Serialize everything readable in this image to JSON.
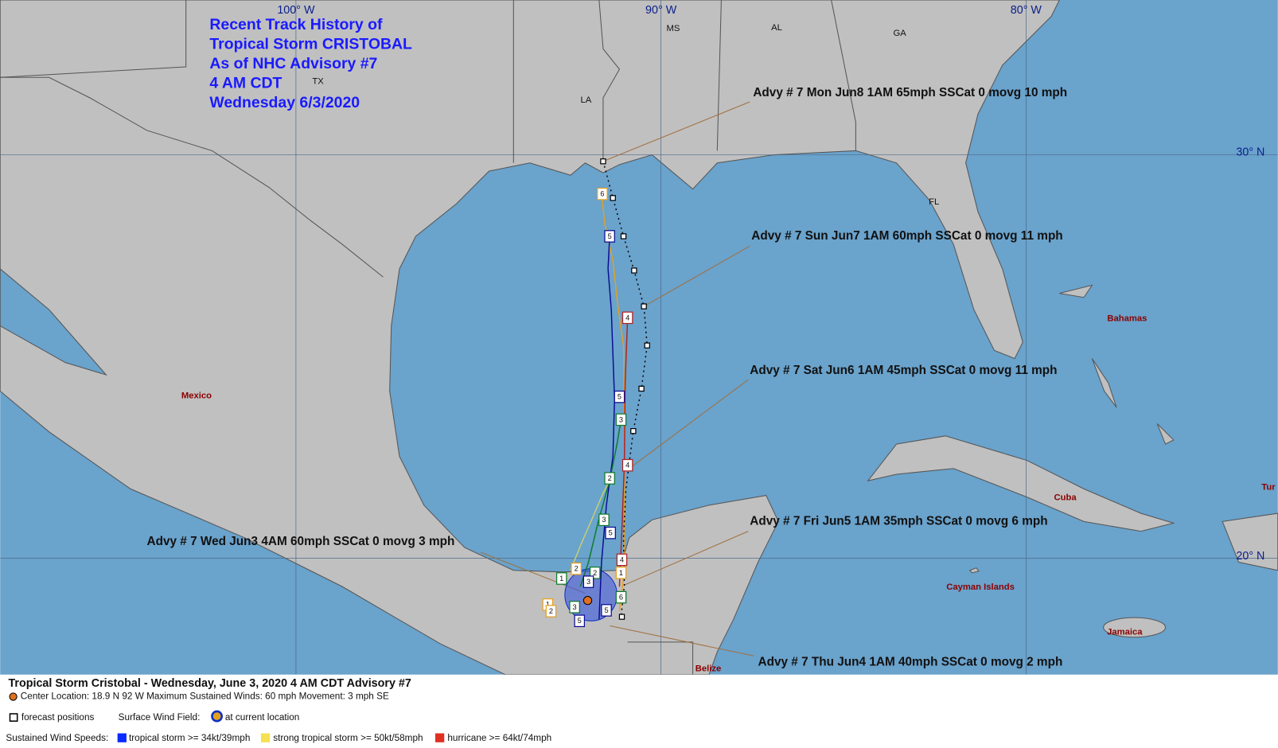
{
  "title_lines": [
    "Recent Track History of",
    "Tropical Storm CRISTOBAL",
    "As of NHC Advisory #7",
    "4 AM CDT",
    "Wednesday 6/3/2020"
  ],
  "longitude_labels": [
    "100° W",
    "90° W",
    "80° W"
  ],
  "latitude_labels": [
    "30° N",
    "20° N"
  ],
  "state_labels": [
    "MS",
    "AL",
    "GA",
    "TX",
    "LA",
    "FL"
  ],
  "place_labels": [
    "Mexico",
    "Bahamas",
    "Cuba",
    "Cayman Islands",
    "Jamaica",
    "Belize",
    "Tur"
  ],
  "advisories": [
    "Advy # 7 Mon Jun8 1AM  65mph SSCat 0 movg 10 mph",
    "Advy # 7 Sun Jun7 1AM  60mph SSCat 0 movg 11 mph",
    "Advy # 7 Sat Jun6 1AM  45mph SSCat 0 movg 11 mph",
    "Advy # 7 Fri Jun5 1AM  35mph SSCat 0 movg 6 mph",
    "Advy # 7 Wed Jun3 4AM  60mph SSCat 0 movg 3 mph",
    "Advy # 7 Thu Jun4 1AM  40mph SSCat 0 movg 2 mph"
  ],
  "track_labels": [
    "6",
    "5",
    "4",
    "5",
    "3",
    "4",
    "2",
    "3",
    "5",
    "4",
    "1",
    "6",
    "5",
    "2",
    "2",
    "1",
    "3",
    "1",
    "2",
    "3",
    "5"
  ],
  "legend": {
    "heading": "Tropical Storm Cristobal  -  Wednesday, June 3, 2020  4 AM CDT   Advisory #7",
    "center": "Center Location: 18.9 N  92 W   Maximum Sustained Winds: 60 mph  Movement: 3 mph SE",
    "forecast": "forecast positions",
    "wind_field": "Surface Wind Field:",
    "current": "at current location",
    "speeds": "Sustained Wind Speeds:",
    "ts": "tropical storm >= 34kt/39mph",
    "sts": "strong tropical storm >= 50kt/58mph",
    "hu": "hurricane >= 64kt/74mph"
  }
}
